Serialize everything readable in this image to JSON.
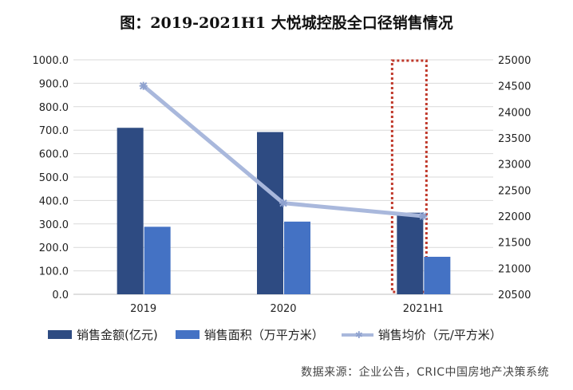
{
  "title": "图：2019-2021H1 大悦城控股全口径销售情况",
  "source": "数据来源：企业公告，CRIC中国房地产决策系统",
  "colors": {
    "amount": "#2e4b82",
    "area": "#4472c4",
    "price": "#a9b8dc",
    "highlight": "#c0392b"
  },
  "chart_data": {
    "type": "bar",
    "categories": [
      "2019",
      "2020",
      "2021H1"
    ],
    "series": [
      {
        "name": "销售金额(亿元)",
        "type": "bar",
        "axis": "left",
        "values": [
          710,
          692,
          348
        ]
      },
      {
        "name": "销售面积（万平方米）",
        "type": "bar",
        "axis": "right",
        "values": [
          288,
          310,
          160
        ]
      },
      {
        "name": "销售均价（元/平方米）",
        "type": "line",
        "axis": "right",
        "marker": "asterisk",
        "values": [
          24500,
          22250,
          22000
        ]
      }
    ],
    "left_axis": {
      "ylim": [
        0,
        1000
      ],
      "ticks": [
        "0.0",
        "100.0",
        "200.0",
        "300.0",
        "400.0",
        "500.0",
        "600.0",
        "700.0",
        "800.0",
        "900.0",
        "1000.0"
      ]
    },
    "right_axis": {
      "ylim": [
        20500,
        25000
      ],
      "ticks": [
        "20500",
        "21000",
        "21500",
        "22000",
        "22500",
        "23000",
        "23500",
        "24000",
        "24500",
        "25000"
      ]
    },
    "grid": true,
    "legend": "bottom",
    "highlight": {
      "category": "2021H1",
      "style": "dotted red box"
    }
  }
}
